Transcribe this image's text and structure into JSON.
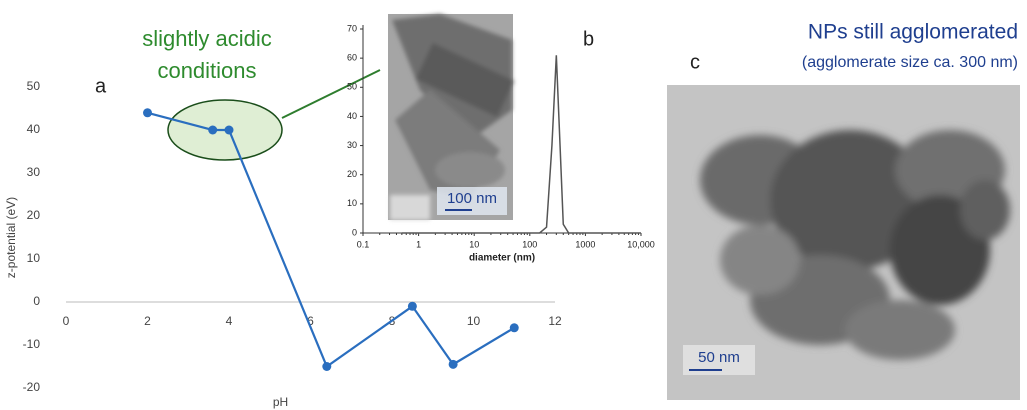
{
  "chart_data": [
    {
      "type": "line",
      "label": "a",
      "xlabel": "pH",
      "ylabel": "z-potential (eV)",
      "annotation": [
        "slightly acidic",
        "conditions"
      ],
      "x": [
        2.0,
        3.6,
        4.0,
        6.4,
        8.5,
        9.5,
        11.0
      ],
      "series": [
        {
          "color": "#2a6ebf",
          "values": [
            44,
            40,
            40,
            -15,
            -1,
            -14.5,
            -6
          ]
        }
      ],
      "xlim": [
        0,
        12
      ],
      "xticks": [
        0,
        2,
        4,
        6,
        8,
        10,
        12
      ],
      "ylim": [
        -20,
        50
      ],
      "yticks": [
        -20,
        -10,
        0,
        10,
        20,
        30,
        40,
        50
      ],
      "markers": true,
      "grid": false
    },
    {
      "type": "line",
      "label": "b",
      "xlabel": "diameter (nm)",
      "scale_bar": "100 nm",
      "xscale": "log",
      "x": [
        0.5,
        100,
        150,
        200,
        250,
        300,
        350,
        400,
        500,
        1000,
        10000
      ],
      "series": [
        {
          "color": "#555555",
          "values": [
            0,
            0,
            0,
            2,
            30,
            61,
            30,
            3,
            0,
            0,
            0
          ]
        }
      ],
      "xlim": [
        0.1,
        10000
      ],
      "xticks": [
        0.1,
        1,
        10,
        100,
        1000,
        {
          "value": 10000,
          "label": "10,000"
        }
      ],
      "ylim": [
        0,
        70
      ],
      "yticks": [
        0,
        10,
        20,
        30,
        40,
        50,
        60,
        70
      ],
      "markers": false,
      "grid": false
    }
  ],
  "panel_c": {
    "label": "c",
    "title": "NPs still agglomerated",
    "subtitle": "(agglomerate size ca. 300 nm)",
    "scale_bar": "50 nm"
  }
}
